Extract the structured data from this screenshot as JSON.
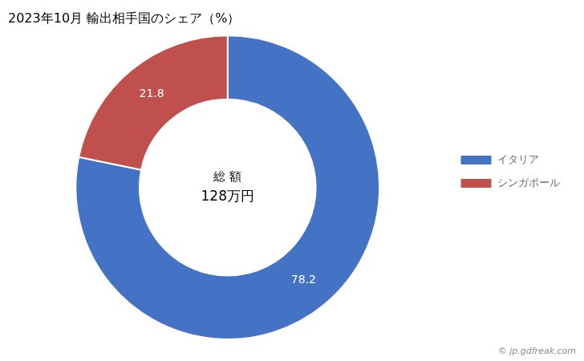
{
  "chart_data": {
    "type": "donut",
    "title": "2023年10月 輸出相手国のシェア（%）",
    "categories": [
      "イタリア",
      "シンガポール"
    ],
    "values": [
      78.2,
      21.8
    ],
    "colors": [
      "#4472C4",
      "#C0504D"
    ],
    "data_labels": true,
    "legend": "right",
    "annotations": [
      "総 額",
      "128万円",
      "© jp.gdfreak.com"
    ]
  }
}
